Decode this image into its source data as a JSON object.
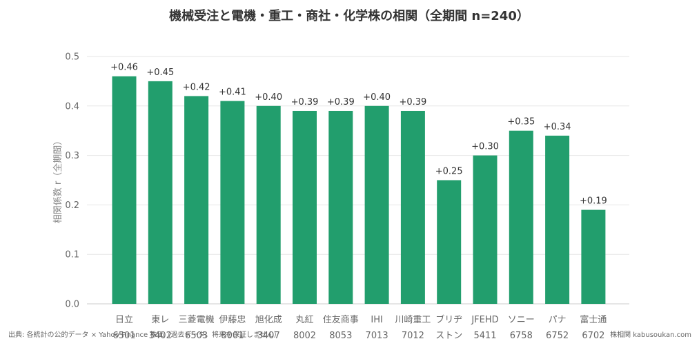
{
  "chart_data": {
    "type": "bar",
    "title": "機械受注と電機・重工・商社・化学株の相関（全期間 n=240）",
    "ylabel": "相関係数 r（全期間）",
    "xlabel": "",
    "ylim": [
      0,
      0.5
    ],
    "yticks": [
      "0.0",
      "0.1",
      "0.2",
      "0.3",
      "0.4",
      "0.5"
    ],
    "grid": true,
    "bar_color": "#229e6d",
    "categories": [
      [
        "日立",
        "6501"
      ],
      [
        "東レ",
        "3402"
      ],
      [
        "三菱電機",
        "6503"
      ],
      [
        "伊藤忠",
        "8001"
      ],
      [
        "旭化成",
        "3407"
      ],
      [
        "丸紅",
        "8002"
      ],
      [
        "住友商事",
        "8053"
      ],
      [
        "IHI",
        "7013"
      ],
      [
        "川崎重工",
        "7012"
      ],
      [
        "ブリヂ",
        "ストン"
      ],
      [
        "JFEHD",
        "5411"
      ],
      [
        "ソニー",
        "6758"
      ],
      [
        "パナ",
        "6752"
      ],
      [
        "富士通",
        "6702"
      ]
    ],
    "values": [
      0.46,
      0.45,
      0.42,
      0.41,
      0.4,
      0.39,
      0.39,
      0.4,
      0.39,
      0.25,
      0.3,
      0.35,
      0.34,
      0.19
    ],
    "data_labels": [
      "+0.46",
      "+0.45",
      "+0.42",
      "+0.41",
      "+0.40",
      "+0.39",
      "+0.39",
      "+0.40",
      "+0.39",
      "+0.25",
      "+0.30",
      "+0.35",
      "+0.34",
      "+0.19"
    ]
  },
  "footer": {
    "source": "出典: 各統計の公的データ × Yahoo Finance 株価（過去データ。将来を保証しません）",
    "credit": "株相関 kabusoukan.com"
  }
}
